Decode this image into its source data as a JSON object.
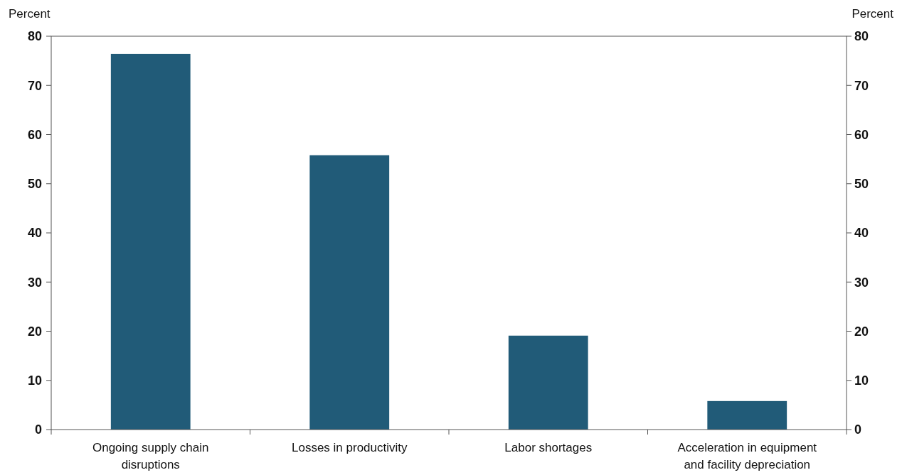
{
  "chart_data": {
    "type": "bar",
    "ylabel": "Percent",
    "y2label": "Percent",
    "categories": [
      "Ongoing supply chain disruptions",
      "Losses in productivity",
      "Labor shortages",
      "Acceleration in equipment and facility depreciation"
    ],
    "values": [
      76.4,
      55.8,
      19.1,
      5.8
    ],
    "color": "#215b78",
    "ylim": [
      0,
      80
    ],
    "yticks": [
      0,
      10,
      20,
      30,
      40,
      50,
      60,
      70,
      80
    ],
    "y2lim": [
      0,
      80
    ],
    "y2ticks": [
      0,
      10,
      20,
      30,
      40,
      50,
      60,
      70,
      80
    ],
    "grid": false
  }
}
